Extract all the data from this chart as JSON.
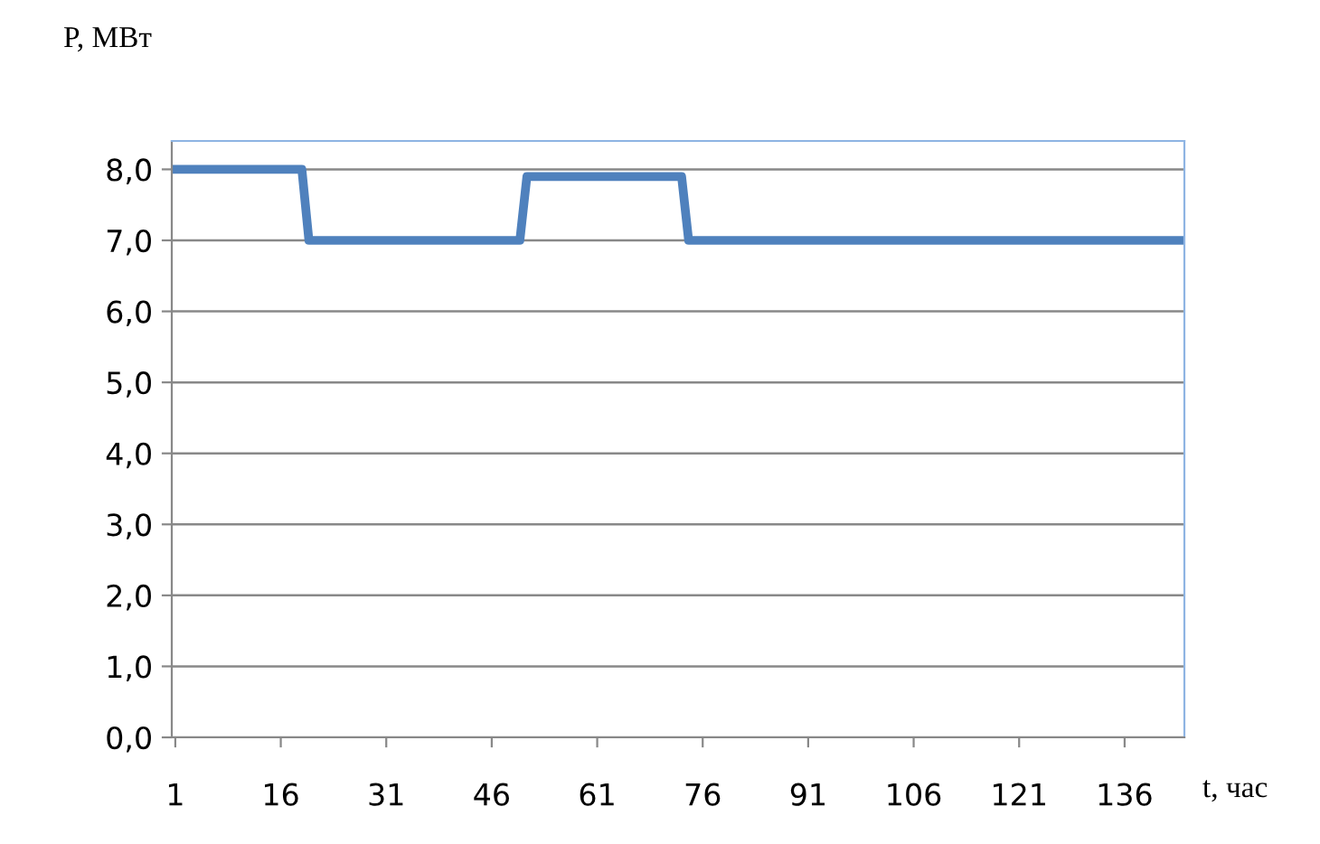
{
  "chart_data": {
    "type": "line",
    "xlabel": "t, час",
    "ylabel": "P, МВт",
    "x": [
      1,
      19,
      20,
      50,
      51,
      73,
      74,
      144
    ],
    "series": [
      {
        "color": "#4f81bd",
        "values": [
          8.0,
          8.0,
          7.0,
          7.0,
          7.9,
          7.9,
          7.0,
          7.0
        ]
      }
    ],
    "xlim": [
      0.5,
      144.5
    ],
    "xticks": [
      1,
      16,
      31,
      46,
      61,
      76,
      91,
      106,
      121,
      136
    ],
    "ylim": [
      0,
      8.4
    ],
    "yticks": [
      {
        "value": 0,
        "label": "0,0"
      },
      {
        "value": 1,
        "label": "1,0"
      },
      {
        "value": 2,
        "label": "2,0"
      },
      {
        "value": 3,
        "label": "3,0"
      },
      {
        "value": 4,
        "label": "4,0"
      },
      {
        "value": 5,
        "label": "5,0"
      },
      {
        "value": 6,
        "label": "6,0"
      },
      {
        "value": 7,
        "label": "7,0"
      },
      {
        "value": 8,
        "label": "8,0"
      }
    ],
    "grid": "y",
    "legend": false,
    "marker": "none",
    "line_style": "solid"
  }
}
